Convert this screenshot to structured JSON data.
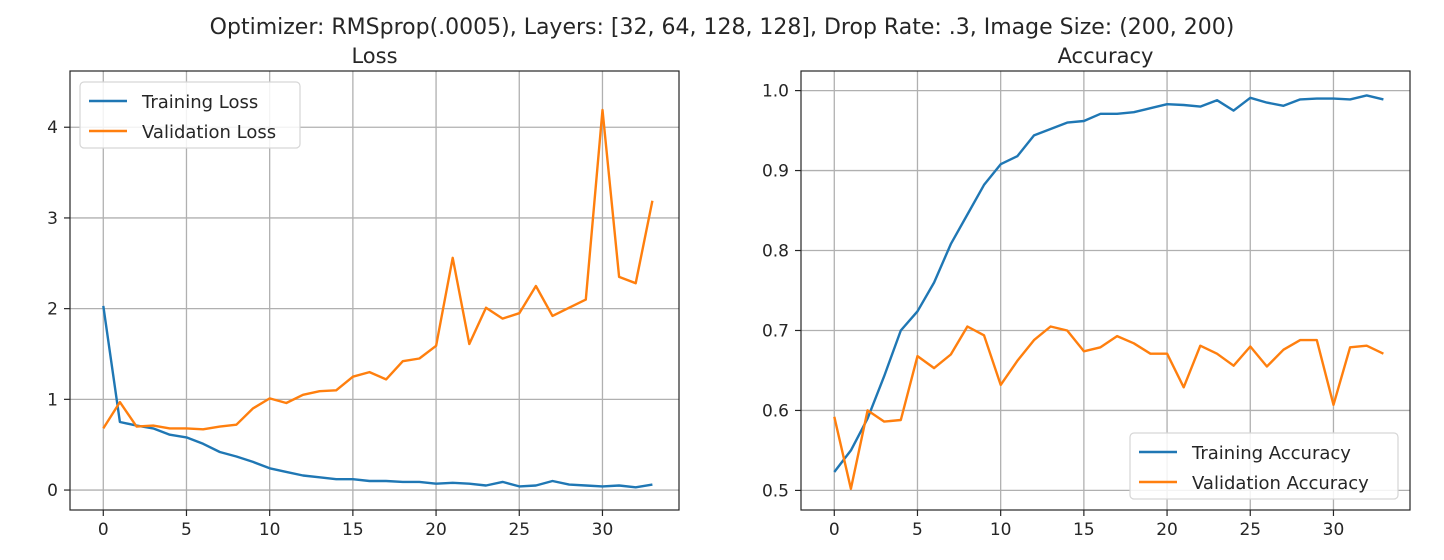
{
  "figure": {
    "suptitle": "Optimizer: RMSprop(.0005), Layers: [32, 64, 128, 128], Drop Rate: .3, Image Size: (200, 200)"
  },
  "chart_data": [
    {
      "type": "line",
      "title": "Loss",
      "xlabel": "",
      "ylabel": "",
      "xlim": [
        -2,
        34.6
      ],
      "ylim": [
        -0.22,
        4.62
      ],
      "xticks": [
        0,
        5,
        10,
        15,
        20,
        25,
        30
      ],
      "yticks": [
        0,
        1,
        2,
        3,
        4
      ],
      "grid": true,
      "legend_position": "upper left",
      "x": [
        0,
        1,
        2,
        3,
        4,
        5,
        6,
        7,
        8,
        9,
        10,
        11,
        12,
        13,
        14,
        15,
        16,
        17,
        18,
        19,
        20,
        21,
        22,
        23,
        24,
        25,
        26,
        27,
        28,
        29,
        30,
        31,
        32,
        33
      ],
      "series": [
        {
          "name": "Training Loss",
          "color": "#1f77b4",
          "values": [
            2.03,
            0.75,
            0.71,
            0.68,
            0.61,
            0.58,
            0.51,
            0.42,
            0.37,
            0.31,
            0.24,
            0.2,
            0.16,
            0.14,
            0.12,
            0.12,
            0.1,
            0.1,
            0.09,
            0.09,
            0.07,
            0.08,
            0.07,
            0.05,
            0.09,
            0.04,
            0.05,
            0.1,
            0.06,
            0.05,
            0.04,
            0.05,
            0.03,
            0.06
          ]
        },
        {
          "name": "Validation Loss",
          "color": "#ff7f0e",
          "values": [
            0.68,
            0.97,
            0.7,
            0.71,
            0.68,
            0.68,
            0.67,
            0.7,
            0.72,
            0.9,
            1.01,
            0.96,
            1.05,
            1.09,
            1.1,
            1.25,
            1.3,
            1.22,
            1.42,
            1.45,
            1.59,
            2.56,
            1.61,
            2.01,
            1.89,
            1.95,
            2.25,
            1.92,
            2.01,
            2.1,
            4.19,
            2.35,
            2.28,
            3.19
          ]
        }
      ]
    },
    {
      "type": "line",
      "title": "Accuracy",
      "xlabel": "",
      "ylabel": "",
      "xlim": [
        -2,
        34.6
      ],
      "ylim": [
        0.4755,
        1.0245
      ],
      "xticks": [
        0,
        5,
        10,
        15,
        20,
        25,
        30
      ],
      "yticks": [
        "0.5",
        "0.6",
        "0.7",
        "0.8",
        "0.9",
        "1.0"
      ],
      "grid": true,
      "legend_position": "lower right",
      "x": [
        0,
        1,
        2,
        3,
        4,
        5,
        6,
        7,
        8,
        9,
        10,
        11,
        12,
        13,
        14,
        15,
        16,
        17,
        18,
        19,
        20,
        21,
        22,
        23,
        24,
        25,
        26,
        27,
        28,
        29,
        30,
        31,
        32,
        33
      ],
      "series": [
        {
          "name": "Training Accuracy",
          "color": "#1f77b4",
          "values": [
            0.523,
            0.55,
            0.59,
            0.643,
            0.7,
            0.724,
            0.76,
            0.808,
            0.845,
            0.882,
            0.908,
            0.918,
            0.944,
            0.952,
            0.96,
            0.962,
            0.971,
            0.971,
            0.973,
            0.978,
            0.983,
            0.982,
            0.98,
            0.988,
            0.975,
            0.991,
            0.985,
            0.981,
            0.989,
            0.99,
            0.99,
            0.989,
            0.994,
            0.989
          ]
        },
        {
          "name": "Validation Accuracy",
          "color": "#ff7f0e",
          "values": [
            0.592,
            0.502,
            0.6,
            0.586,
            0.588,
            0.668,
            0.653,
            0.67,
            0.705,
            0.694,
            0.632,
            0.662,
            0.688,
            0.705,
            0.7,
            0.674,
            0.679,
            0.693,
            0.684,
            0.671,
            0.671,
            0.629,
            0.681,
            0.671,
            0.656,
            0.68,
            0.655,
            0.676,
            0.688,
            0.688,
            0.607,
            0.679,
            0.681,
            0.671
          ]
        }
      ]
    }
  ]
}
